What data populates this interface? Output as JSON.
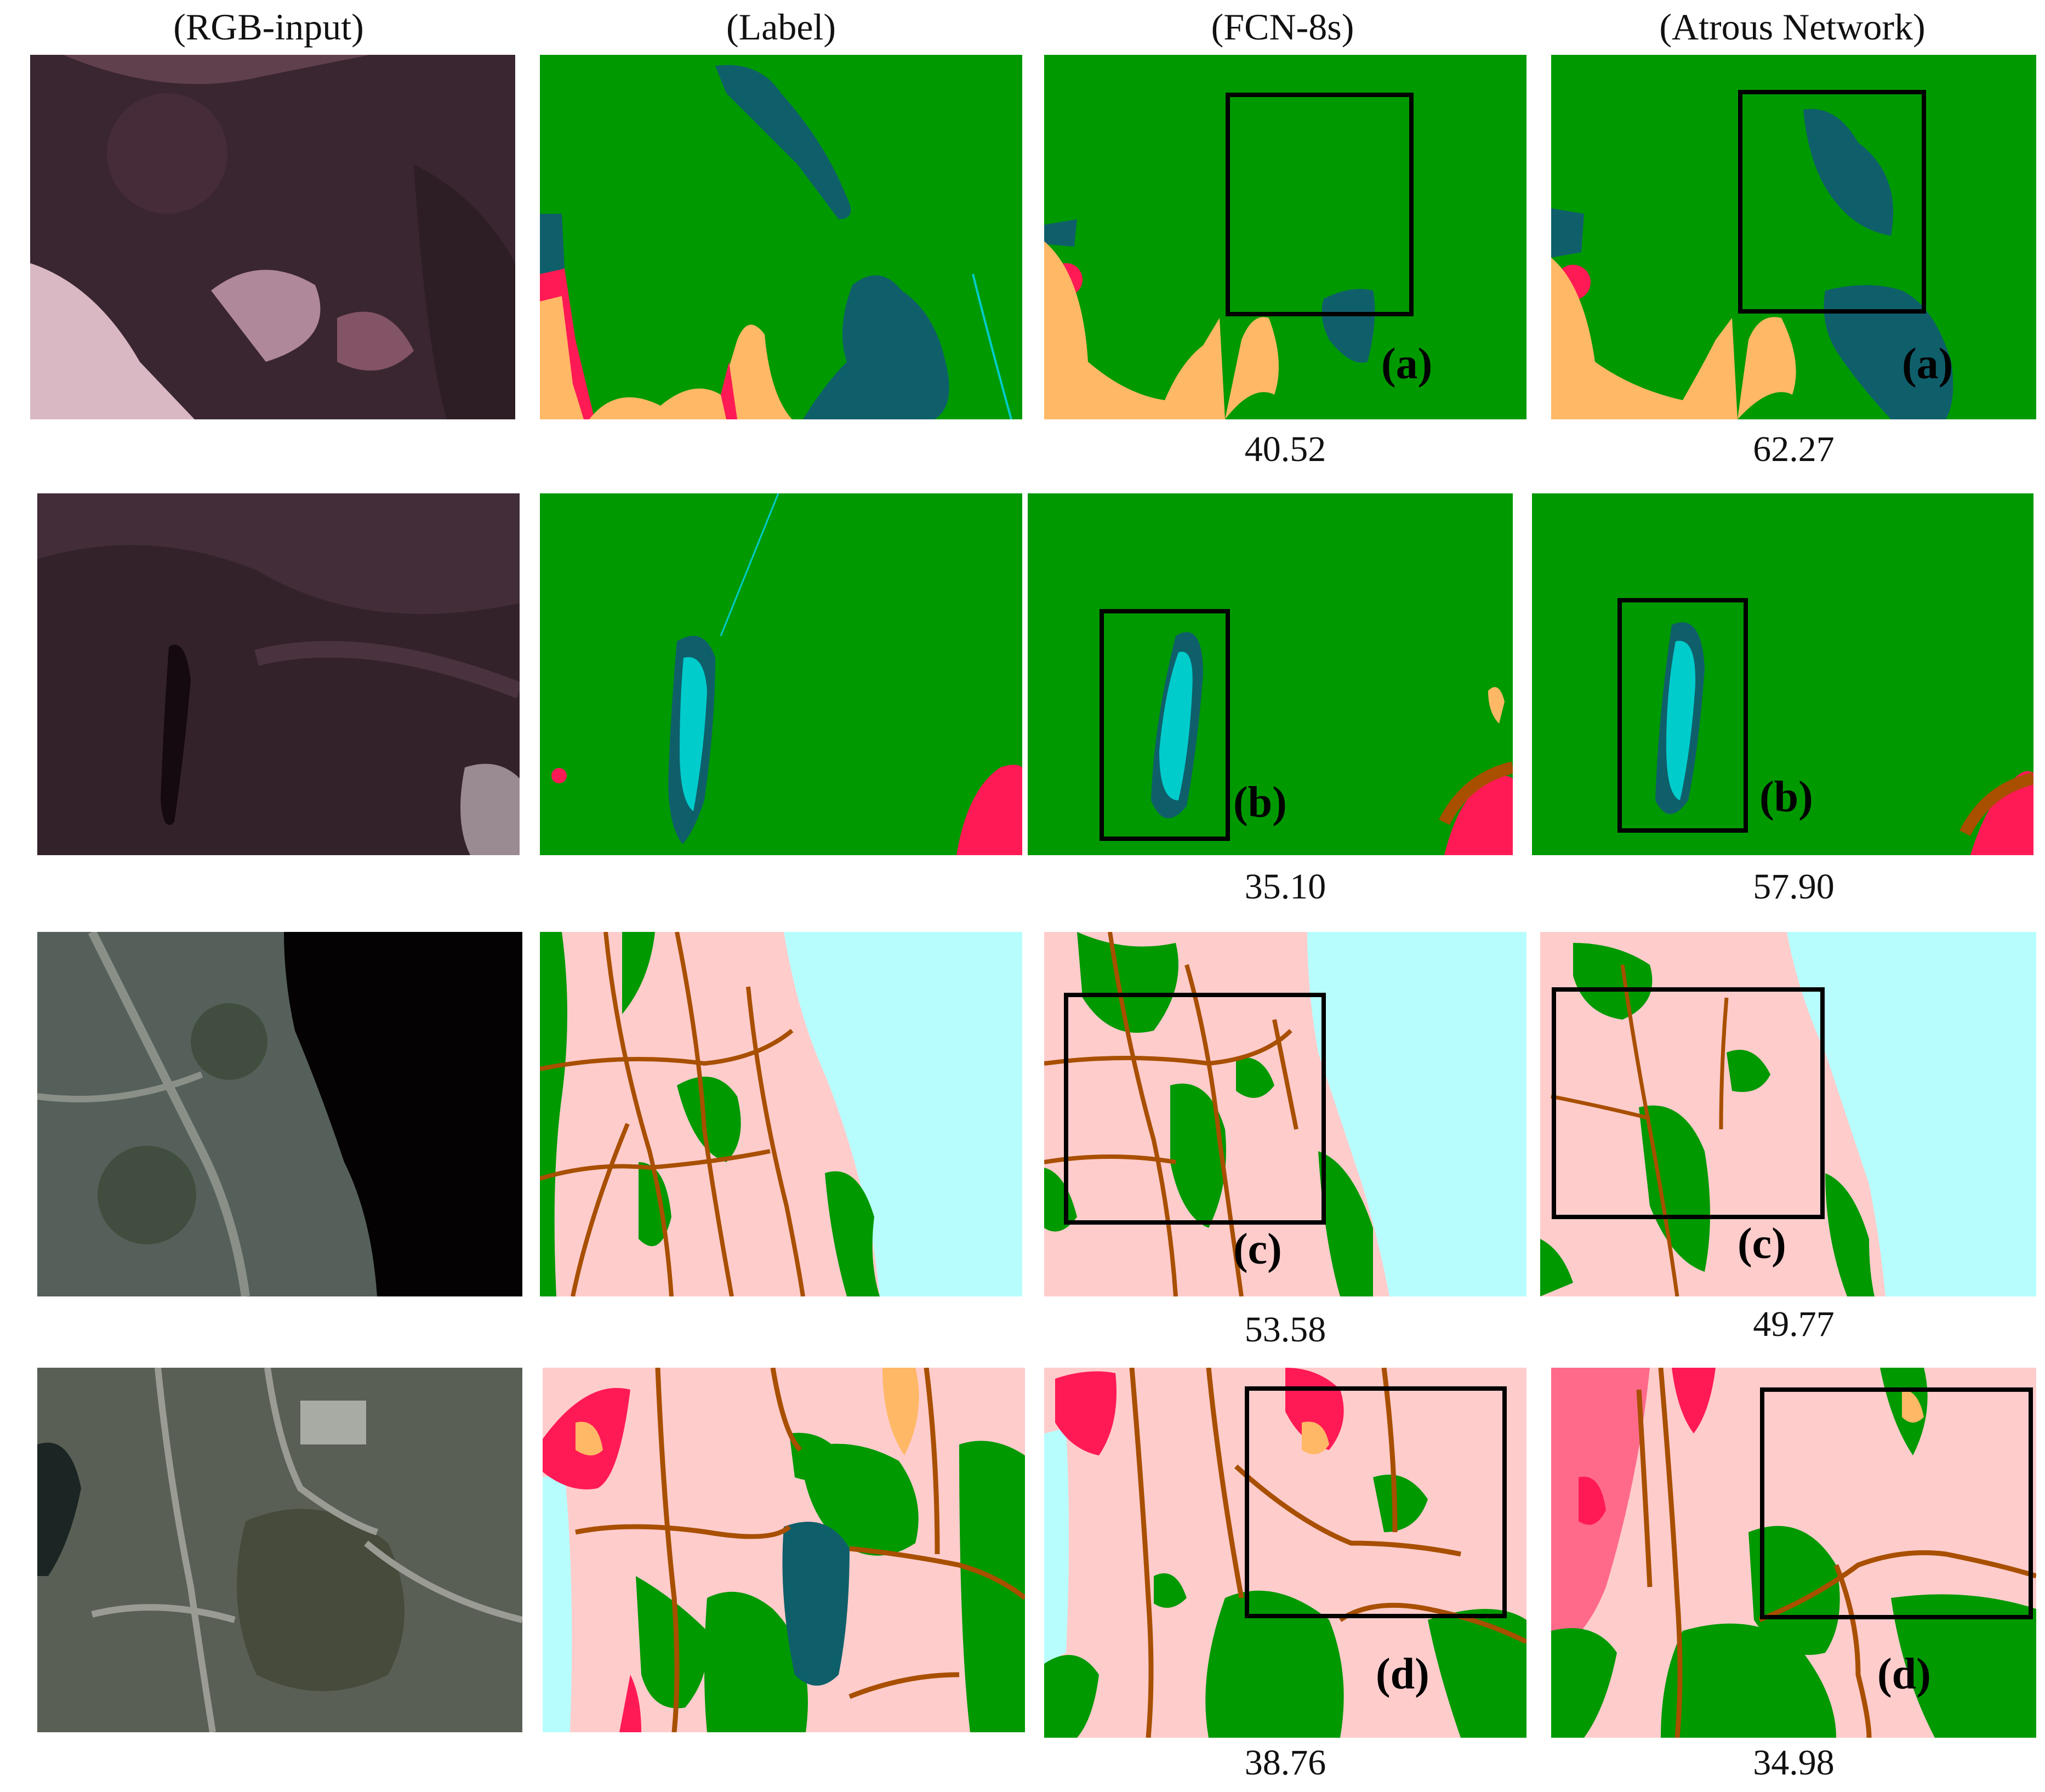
{
  "columns": [
    "(RGB-input)",
    "(Label)",
    "(FCN-8s)",
    "(Atrous Network)"
  ],
  "rows": [
    {
      "box_label": "(a)",
      "fcn_score": "40.52",
      "atrous_score": "62.27"
    },
    {
      "box_label": "(b)",
      "fcn_score": "35.10",
      "atrous_score": "57.90"
    },
    {
      "box_label": "(c)",
      "fcn_score": "53.58",
      "atrous_score": "49.77"
    },
    {
      "box_label": "(d)",
      "fcn_score": "38.76",
      "atrous_score": "34.98"
    }
  ],
  "colors": {
    "forest": "#009900",
    "water": "#0f5f6b",
    "light_water": "#00cccc",
    "sea": "#b8fdfd",
    "residential": "#ffcccc",
    "road": "#a84f00",
    "red_class": "#ff1a55",
    "bare_orange": "#ffb866"
  }
}
